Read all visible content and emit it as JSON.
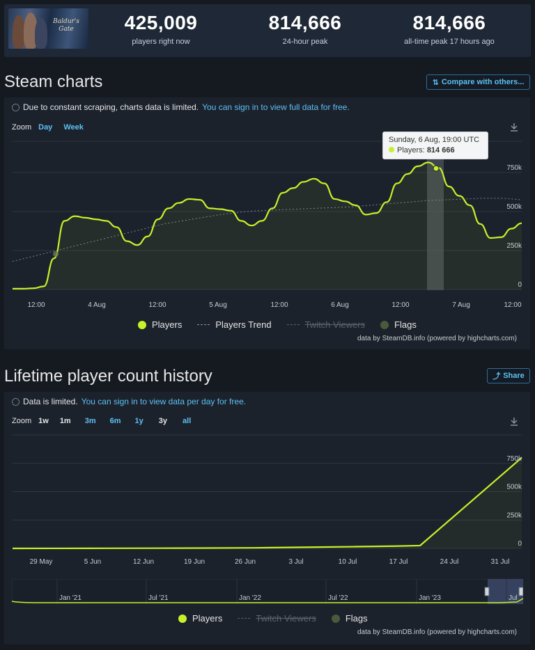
{
  "stats": {
    "current": {
      "value": "425,009",
      "label": "players right now"
    },
    "peak24": {
      "value": "814,666",
      "label": "24-hour peak"
    },
    "alltime": {
      "value": "814,666",
      "label": "all-time peak 17 hours ago"
    }
  },
  "game_logo_text": "Baldur's Gate",
  "steam_charts": {
    "title": "Steam charts",
    "compare_label": "Compare with others...",
    "notice_text": "Due to constant scraping, charts data is limited.",
    "notice_link": "You can sign in to view full data for free.",
    "zoom_label": "Zoom",
    "zoom_options": [
      "Day",
      "Week"
    ],
    "tooltip_date": "Sunday, 6 Aug, 19:00 UTC",
    "tooltip_series": "Players:",
    "tooltip_value": "814 666",
    "legend": {
      "players": "Players",
      "trend": "Players Trend",
      "twitch": "Twitch Viewers",
      "flags": "Flags"
    },
    "credit": "data by SteamDB.info (powered by highcharts.com)"
  },
  "lifetime": {
    "title": "Lifetime player count history",
    "share_label": "Share",
    "notice_text": "Data is limited.",
    "notice_link": "You can sign in to view data per day for free.",
    "zoom_label": "Zoom",
    "zoom_options": [
      "1w",
      "1m",
      "3m",
      "6m",
      "1y",
      "3y",
      "all"
    ],
    "legend": {
      "players": "Players",
      "twitch": "Twitch Viewers",
      "flags": "Flags"
    },
    "credit": "data by SteamDB.info (powered by highcharts.com)"
  },
  "colors": {
    "players": "#c6f22a",
    "accent": "#5cc1f5",
    "bg": "#151920",
    "panel": "#1c222c"
  },
  "chart_data": [
    {
      "type": "line",
      "x_ticks": [
        "12:00",
        "4 Aug",
        "12:00",
        "5 Aug",
        "12:00",
        "6 Aug",
        "12:00",
        "7 Aug",
        "12:00"
      ],
      "y_ticks": [
        "0",
        "250k",
        "500k",
        "750k"
      ],
      "ylim": [
        0,
        950000
      ],
      "series": [
        {
          "name": "Players",
          "values": [
            5000,
            5000,
            8000,
            20000,
            200000,
            440000,
            470000,
            460000,
            450000,
            440000,
            400000,
            310000,
            285000,
            340000,
            450000,
            520000,
            555000,
            580000,
            575000,
            520000,
            515000,
            505000,
            440000,
            410000,
            440000,
            520000,
            620000,
            650000,
            690000,
            710000,
            680000,
            580000,
            565000,
            540000,
            480000,
            490000,
            560000,
            680000,
            740000,
            790000,
            814666,
            780000,
            660000,
            600000,
            540000,
            420000,
            330000,
            335000,
            390000,
            425009
          ]
        },
        {
          "name": "Players Trend",
          "values": [
            180000,
            210000,
            240000,
            270000,
            300000,
            330000,
            360000,
            390000,
            420000,
            440000,
            460000,
            480000,
            495000,
            505000,
            510000,
            515000,
            520000,
            525000,
            530000,
            540000,
            550000,
            560000,
            570000,
            575000,
            580000,
            585000,
            585000,
            575000
          ]
        }
      ],
      "highlight": {
        "label": "Sunday, 6 Aug, 19:00 UTC",
        "value": 814666
      }
    },
    {
      "type": "line",
      "x_ticks": [
        "29 May",
        "5 Jun",
        "12 Jun",
        "19 Jun",
        "26 Jun",
        "3 Jul",
        "10 Jul",
        "17 Jul",
        "24 Jul",
        "31 Jul"
      ],
      "y_ticks": [
        "0",
        "250k",
        "500k",
        "750k"
      ],
      "ylim": [
        0,
        1000000
      ],
      "series": [
        {
          "name": "Players",
          "values": [
            0,
            500,
            1000,
            2000,
            3000,
            5000,
            10000,
            15000,
            20000,
            25000,
            30000,
            800000
          ]
        }
      ],
      "navigator_ticks": [
        "Jan '21",
        "Jul '21",
        "Jan '22",
        "Jul '22",
        "Jan '23",
        "Jul"
      ]
    }
  ]
}
